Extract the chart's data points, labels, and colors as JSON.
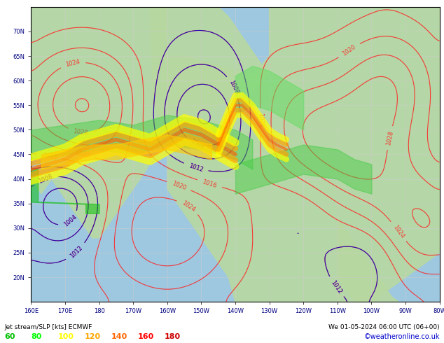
{
  "title": "Jet stream/SLP [kts] ECMWF",
  "datetime_label": "We 01-05-2024 06:00 UTC (06+00)",
  "credit": "©weatheronline.co.uk",
  "legend_values": [
    60,
    80,
    100,
    120,
    140,
    160,
    180
  ],
  "legend_colors": [
    "#00c000",
    "#00ff00",
    "#ffff00",
    "#ffa500",
    "#ff6600",
    "#ff0000",
    "#cc0000"
  ],
  "bg_color": "#a8d8a8",
  "land_color": "#c8e8c8",
  "ocean_color": "#a8c8e8",
  "grid_color": "#aaaaaa",
  "slp_color_high": "#ff0000",
  "slp_color_low": "#0000ff",
  "figsize": [
    6.34,
    4.9
  ],
  "dpi": 100,
  "xlim": [
    160,
    280
  ],
  "ylim": [
    15,
    75
  ],
  "xlabel_ticks": [
    170,
    180,
    190,
    200,
    210,
    220,
    230,
    240,
    250,
    260,
    270,
    280
  ],
  "xlabel_labels": [
    "170E",
    "180",
    "170W",
    "160W",
    "150W",
    "140W",
    "130W",
    "120W",
    "110W",
    "100W",
    "90W",
    "80W"
  ],
  "bottom_label": "Jet stream/SLP [kts] ECMWF",
  "bottom_right": "We 01-05-2024 06:00 UTC (06+00)"
}
